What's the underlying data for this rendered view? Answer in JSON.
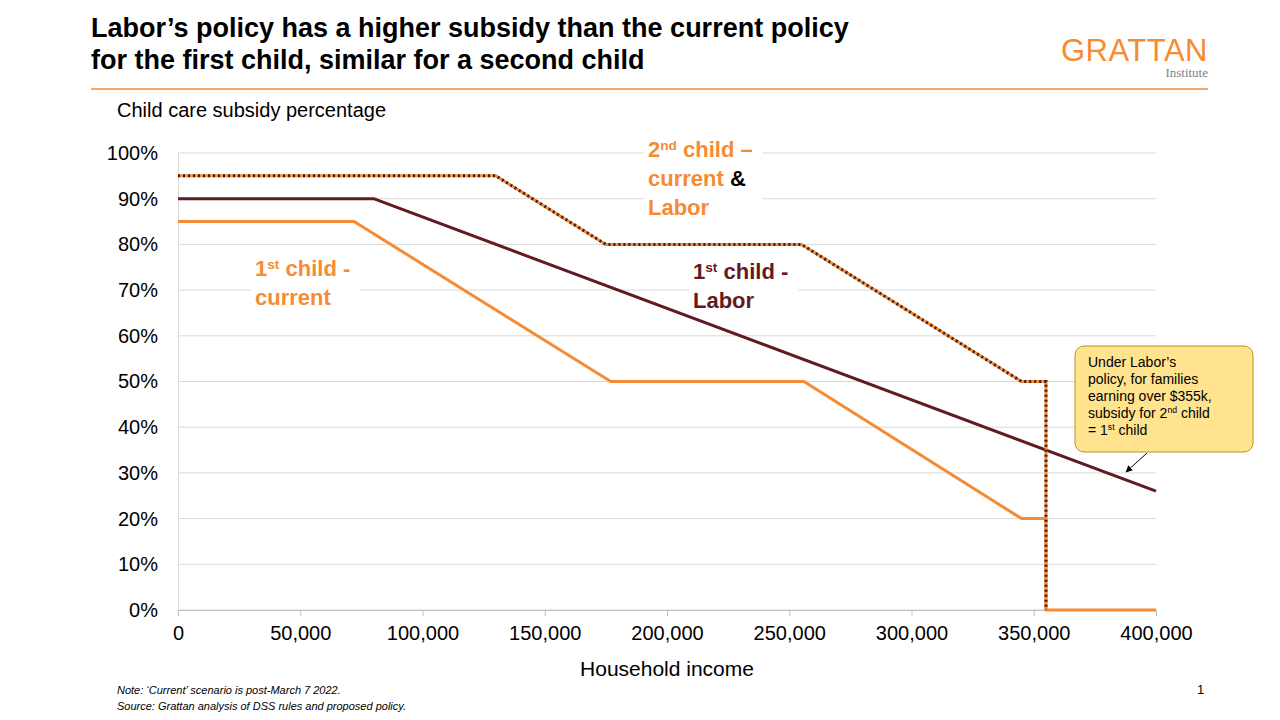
{
  "chart_data": {
    "type": "line",
    "title": [
      "Labor’s policy has a higher subsidy than the current policy",
      "for the first child, similar for a second child"
    ],
    "logo": {
      "name": "GRATTAN",
      "subtitle": "Institute"
    },
    "y_label": "Child care subsidy percentage",
    "x_label": "Household income",
    "xlim": [
      0,
      400000
    ],
    "xticks": [
      0,
      {
        "value": 50000,
        "label": "50,000"
      },
      {
        "value": 100000,
        "label": "100,000"
      },
      {
        "value": 150000,
        "label": "150,000"
      },
      {
        "value": 200000,
        "label": "200,000"
      },
      {
        "value": 250000,
        "label": "250,000"
      },
      {
        "value": 300000,
        "label": "300,000"
      },
      {
        "value": 350000,
        "label": "350,000"
      },
      {
        "value": 400000,
        "label": "400,000"
      }
    ],
    "ylim": [
      0,
      100
    ],
    "yticks": [
      {
        "value": 0,
        "label": "0%"
      },
      {
        "value": 10,
        "label": "10%"
      },
      {
        "value": 20,
        "label": "20%"
      },
      {
        "value": 30,
        "label": "30%"
      },
      {
        "value": 40,
        "label": "40%"
      },
      {
        "value": 50,
        "label": "50%"
      },
      {
        "value": 60,
        "label": "60%"
      },
      {
        "value": 70,
        "label": "70%"
      },
      {
        "value": 80,
        "label": "80%"
      },
      {
        "value": 90,
        "label": "90%"
      },
      {
        "value": 100,
        "label": "100%"
      }
    ],
    "grid": true,
    "series": [
      {
        "name": "1st child - current",
        "color": "#F68B33",
        "line_style": "solid",
        "x": [
          0,
          72000,
          177000,
          256000,
          345000,
          355000,
          355000,
          400000
        ],
        "values": [
          85,
          85,
          50,
          50,
          20,
          20,
          0,
          0
        ]
      },
      {
        "name": "1st child - Labor",
        "color": "#621B22",
        "line_style": "solid",
        "x": [
          0,
          80000,
          400000
        ],
        "values": [
          90,
          90,
          26
        ]
      },
      {
        "name": "2nd child – current & Labor",
        "color": "#F68B33",
        "line_style": "dotted",
        "x": [
          0,
          130000,
          175000,
          255000,
          345000,
          355000,
          355000
        ],
        "values": [
          95,
          95,
          80,
          80,
          50,
          50,
          0
        ]
      }
    ],
    "annotations": [
      {
        "text": [
          "Under Labor’s",
          "policy, for families",
          "earning over $355k,",
          "subsidy for 2nd child",
          "= 1st child"
        ]
      }
    ],
    "notes": [
      "Note: ‘Current’ scenario is post-March 7 2022.",
      "Source: Grattan analysis of DSS rules and proposed policy."
    ],
    "page": "1"
  }
}
